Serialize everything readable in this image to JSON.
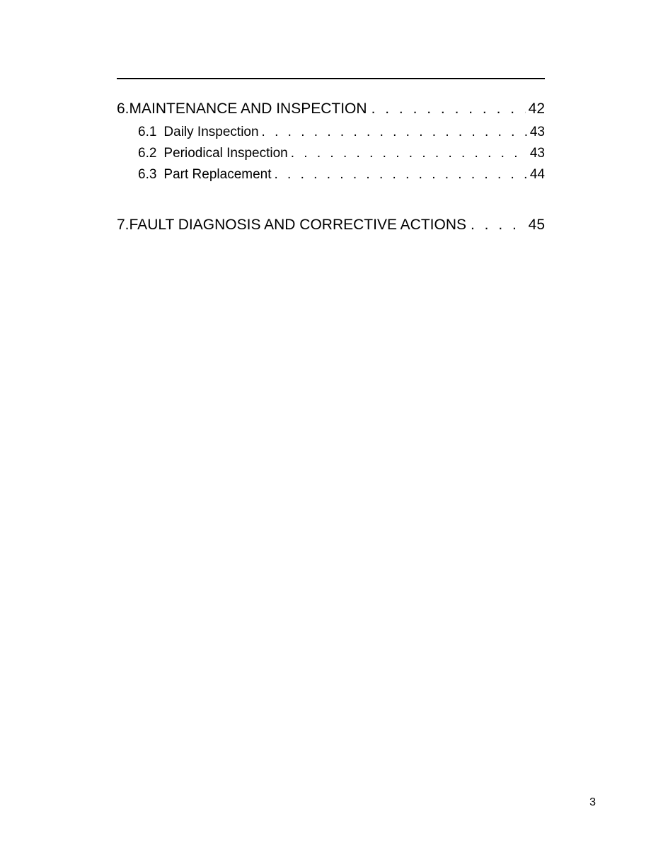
{
  "page": {
    "background_color": "#ffffff",
    "text_color": "#000000",
    "rule_color": "#000000",
    "font_family": "Arial, Helvetica, sans-serif",
    "chapter_fontsize": 21,
    "sub_fontsize": 19,
    "footer_fontsize": 16
  },
  "toc": {
    "sections": [
      {
        "num": "6.",
        "title": "MAINTENANCE AND INSPECTION",
        "page": "42",
        "subs": [
          {
            "num": "6.1",
            "title": "Daily Inspection",
            "page": "43"
          },
          {
            "num": "6.2",
            "title": "Periodical Inspection",
            "page": "43"
          },
          {
            "num": "6.3",
            "title": "Part Replacement",
            "page": "44"
          }
        ]
      },
      {
        "num": "7.",
        "title": "FAULT DIAGNOSIS AND CORRECTIVE ACTIONS",
        "page": "45",
        "subs": []
      }
    ]
  },
  "dots_fill": ". . . . . . . . . . . . . . . . . . . . . . . . . . . . . . . . . . . . . . . . . . . . . . . . . . . . . . . . . . . .",
  "footer": {
    "page_number": "3"
  }
}
